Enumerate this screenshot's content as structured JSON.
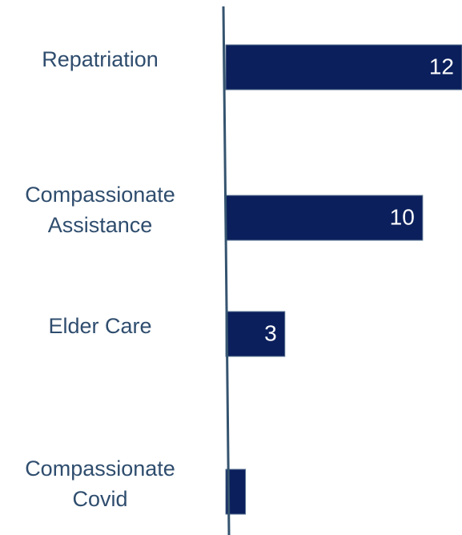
{
  "chart_data": {
    "type": "barh",
    "categories": [
      "Repatriation",
      "Compassionate Assistance",
      "Elder Care",
      "Compassionate Covid"
    ],
    "values": [
      12,
      10,
      3,
      1
    ],
    "color": "#0b1f5c",
    "xlim": [
      0,
      12
    ]
  }
}
